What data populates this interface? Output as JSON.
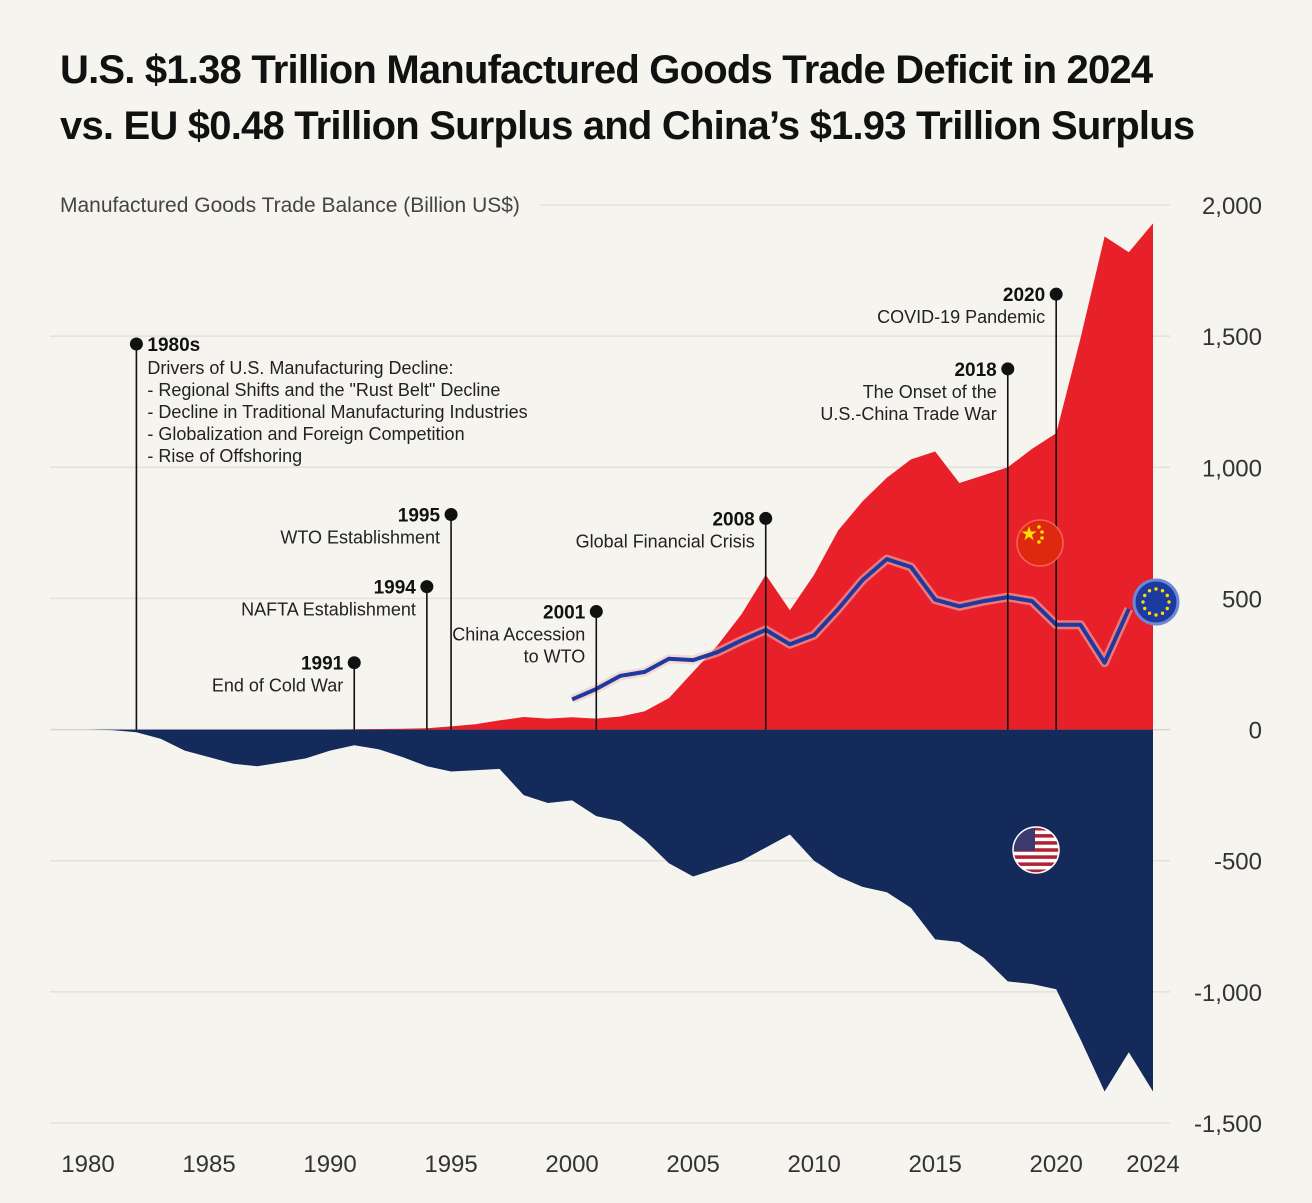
{
  "title": {
    "line1": "U.S. $1.38 Trillion Manufactured Goods Trade Deficit in 2024",
    "line2": "vs. EU $0.48 Trillion Surplus and China’s $1.93 Trillion Surplus"
  },
  "chart_data": {
    "type": "area",
    "ylabel": "Manufactured Goods Trade Balance (Billion US$)",
    "ylim": [
      -1500,
      2000
    ],
    "xlim": [
      1980,
      2024
    ],
    "yticks": [
      2000,
      1500,
      1000,
      500,
      0,
      -500,
      -1000,
      -1500
    ],
    "ytick_labels": [
      "2,000",
      "1,500",
      "1,000",
      "500",
      "0",
      "-500",
      "-1,000",
      "-1,500"
    ],
    "xticks": [
      1980,
      1985,
      1990,
      1995,
      2000,
      2005,
      2010,
      2015,
      2020,
      2024
    ],
    "grid": "horizontal",
    "series": [
      {
        "id": "china",
        "style": "area",
        "color": "#e8202a",
        "icon": "china-flag-icon",
        "x": [
          1980,
          1981,
          1982,
          1983,
          1984,
          1985,
          1986,
          1987,
          1988,
          1989,
          1990,
          1991,
          1992,
          1993,
          1994,
          1995,
          1996,
          1997,
          1998,
          1999,
          2000,
          2001,
          2002,
          2003,
          2004,
          2005,
          2006,
          2007,
          2008,
          2009,
          2010,
          2011,
          2012,
          2013,
          2014,
          2015,
          2016,
          2017,
          2018,
          2019,
          2020,
          2021,
          2022,
          2023,
          2024
        ],
        "values": [
          0,
          0,
          0,
          0,
          0,
          0,
          0,
          0,
          0,
          0,
          0,
          1,
          2,
          3,
          5,
          12,
          20,
          35,
          48,
          42,
          47,
          42,
          50,
          70,
          120,
          220,
          320,
          440,
          590,
          455,
          590,
          760,
          870,
          960,
          1030,
          1060,
          940,
          970,
          1000,
          1070,
          1130,
          1490,
          1880,
          1820,
          1930
        ]
      },
      {
        "id": "eu",
        "style": "line",
        "color": "#1d3aa0",
        "icon": "eu-flag-icon",
        "x": [
          2000,
          2001,
          2002,
          2003,
          2004,
          2005,
          2006,
          2007,
          2008,
          2009,
          2010,
          2011,
          2012,
          2013,
          2014,
          2015,
          2016,
          2017,
          2018,
          2019,
          2020,
          2021,
          2022,
          2023
        ],
        "values": [
          115,
          155,
          205,
          220,
          270,
          265,
          295,
          340,
          380,
          325,
          360,
          460,
          570,
          650,
          620,
          495,
          470,
          490,
          505,
          490,
          400,
          400,
          255,
          460
        ]
      },
      {
        "id": "us",
        "style": "area",
        "color": "#132a5a",
        "icon": "us-flag-icon",
        "x": [
          1980,
          1981,
          1982,
          1983,
          1984,
          1985,
          1986,
          1987,
          1988,
          1989,
          1990,
          1991,
          1992,
          1993,
          1994,
          1995,
          1996,
          1997,
          1998,
          1999,
          2000,
          2001,
          2002,
          2003,
          2004,
          2005,
          2006,
          2007,
          2008,
          2009,
          2010,
          2011,
          2012,
          2013,
          2014,
          2015,
          2016,
          2017,
          2018,
          2019,
          2020,
          2021,
          2022,
          2023,
          2024
        ],
        "values": [
          0,
          -2,
          -10,
          -35,
          -80,
          -105,
          -130,
          -140,
          -125,
          -110,
          -80,
          -60,
          -75,
          -105,
          -140,
          -160,
          -155,
          -150,
          -250,
          -280,
          -270,
          -330,
          -350,
          -420,
          -510,
          -560,
          -530,
          -500,
          -450,
          -400,
          -500,
          -560,
          -600,
          -620,
          -680,
          -800,
          -810,
          -870,
          -960,
          -970,
          -990,
          -1180,
          -1380,
          -1230,
          -1380
        ]
      }
    ],
    "annotations": [
      {
        "year": "1980s",
        "x": 1982,
        "y": 1470,
        "text": [
          "Drivers of U.S. Manufacturing Decline:",
          "- Regional Shifts and the \"Rust Belt\" Decline",
          "- Decline in Traditional Manufacturing Industries",
          "- Globalization and Foreign Competition",
          "- Rise of Offshoring"
        ]
      },
      {
        "year": "1991",
        "x": 1991,
        "y": 255,
        "text": [
          "End of Cold War"
        ]
      },
      {
        "year": "1994",
        "x": 1994,
        "y": 545,
        "text": [
          "NAFTA Establishment"
        ]
      },
      {
        "year": "1995",
        "x": 1995,
        "y": 820,
        "text": [
          "WTO Establishment"
        ]
      },
      {
        "year": "2001",
        "x": 2001,
        "y": 450,
        "text": [
          "China Accession",
          "to WTO"
        ]
      },
      {
        "year": "2008",
        "x": 2008,
        "y": 805,
        "text": [
          "Global Financial Crisis"
        ]
      },
      {
        "year": "2018",
        "x": 2018,
        "y": 1375,
        "text": [
          "The Onset of the",
          "U.S.-China Trade War"
        ]
      },
      {
        "year": "2020",
        "x": 2020,
        "y": 1660,
        "text": [
          "COVID-19 Pandemic"
        ]
      }
    ]
  }
}
